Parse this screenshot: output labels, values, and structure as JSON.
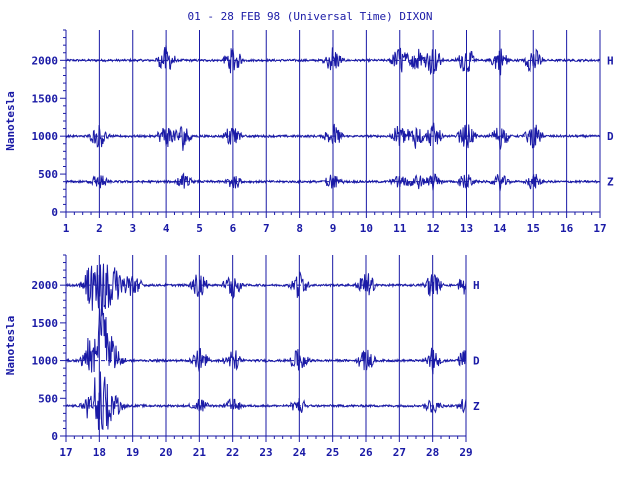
{
  "chart_data": {
    "type": "line",
    "title": "01 - 28 FEB 98 (Universal Time) DIXON",
    "ylabel": "Nanotesla",
    "color": "#1a1aa6",
    "ylim": [
      0,
      2400
    ],
    "y_ticks": [
      0,
      500,
      1000,
      1500,
      2000
    ],
    "series_labels": [
      "H",
      "D",
      "Z"
    ],
    "panels": [
      {
        "x_ticks": [
          "1",
          "2",
          "3",
          "4",
          "5",
          "6",
          "7",
          "8",
          "9",
          "10",
          "11",
          "12",
          "13",
          "14",
          "15",
          "16",
          "17"
        ],
        "x_start_day": 1,
        "x_end_day": 17,
        "data_start_day": 1,
        "data_end_day": 17,
        "series": [
          {
            "name": "H",
            "baseline": 2000,
            "disturbed_days": [
              4,
              6,
              9,
              11,
              11.5,
              12,
              13,
              14,
              15
            ]
          },
          {
            "name": "D",
            "baseline": 1000,
            "disturbed_days": [
              2,
              4,
              4.5,
              6,
              9,
              11,
              11.5,
              12,
              13,
              14,
              15
            ]
          },
          {
            "name": "Z",
            "baseline": 400,
            "disturbed_days": [
              2,
              4.5,
              6,
              9,
              11,
              11.5,
              12,
              13,
              14,
              15
            ]
          }
        ]
      },
      {
        "x_ticks": [
          "17",
          "18",
          "19",
          "20",
          "21",
          "22",
          "23",
          "24",
          "25",
          "26",
          "27",
          "28",
          "29"
        ],
        "x_start_day": 17,
        "x_end_day": 29,
        "data_start_day": 17,
        "data_end_day": 29,
        "series": [
          {
            "name": "H",
            "baseline": 2000,
            "disturbed_days": [
              17.7,
              18,
              18.5,
              19,
              21,
              22,
              24,
              26,
              28,
              29
            ]
          },
          {
            "name": "D",
            "baseline": 1000,
            "disturbed_days": [
              17.7,
              18,
              18.5,
              21,
              22,
              24,
              26,
              28,
              29
            ]
          },
          {
            "name": "Z",
            "baseline": 400,
            "disturbed_days": [
              17.7,
              18,
              18.5,
              21,
              22,
              24,
              28,
              29
            ]
          }
        ]
      }
    ]
  }
}
